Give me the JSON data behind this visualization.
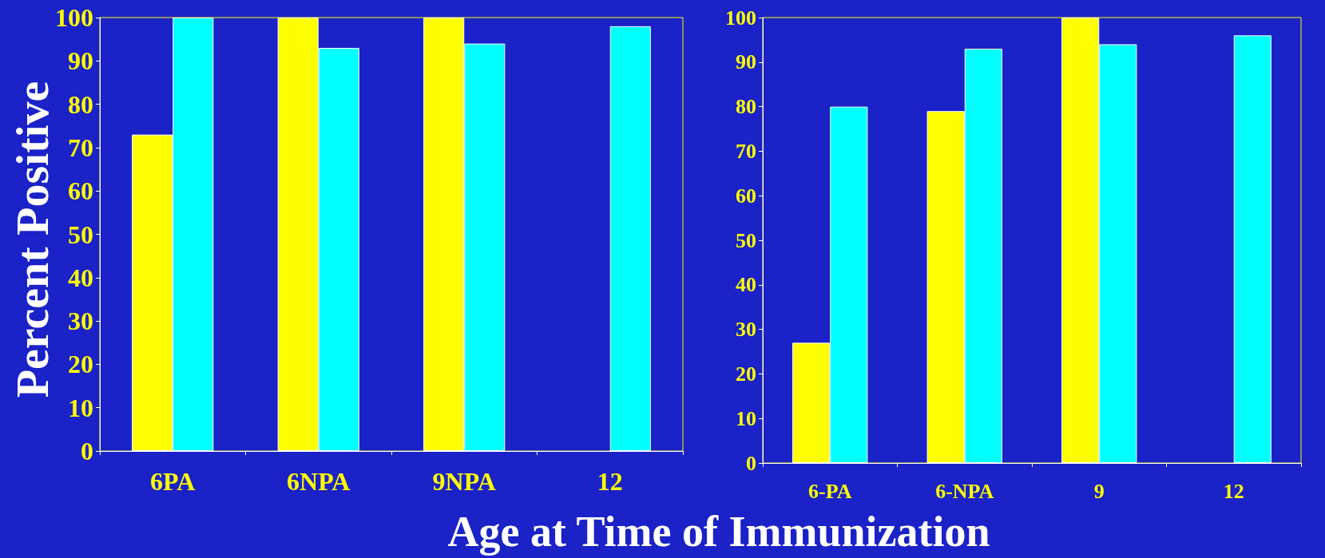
{
  "chart_data": [
    {
      "type": "bar",
      "ylabel": "Percent Positive",
      "xlabel": "Age at Time of Immunization",
      "categories": [
        "6PA",
        "6NPA",
        "9NPA",
        "12"
      ],
      "series": [
        {
          "color": "#ffff00",
          "values": [
            73,
            100,
            100,
            null
          ]
        },
        {
          "color": "#00ffff",
          "values": [
            100,
            93,
            94,
            98
          ]
        }
      ],
      "ylim": [
        0,
        100
      ],
      "yticks": [
        0,
        10,
        20,
        30,
        40,
        50,
        60,
        70,
        80,
        90,
        100
      ],
      "grid": false
    },
    {
      "type": "bar",
      "categories": [
        "6-PA",
        "6-NPA",
        "9",
        "12"
      ],
      "series": [
        {
          "color": "#ffff00",
          "values": [
            27,
            79,
            100,
            null
          ]
        },
        {
          "color": "#00ffff",
          "values": [
            80,
            93,
            94,
            96
          ]
        }
      ],
      "ylim": [
        0,
        100
      ],
      "yticks": [
        0,
        10,
        20,
        30,
        40,
        50,
        60,
        70,
        80,
        90,
        100
      ],
      "grid": false
    }
  ]
}
